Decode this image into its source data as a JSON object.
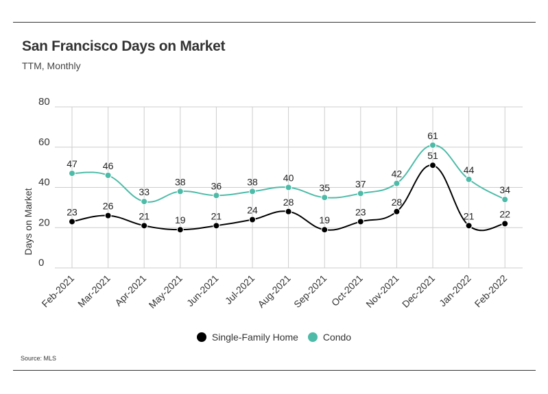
{
  "header": {
    "title": "San Francisco Days on Market",
    "subtitle": "TTM, Monthly"
  },
  "footer": {
    "source": "Source:  MLS"
  },
  "colors": {
    "single_family": "#000000",
    "condo": "#4dbba8",
    "grid": "#cccccc"
  },
  "chart_data": {
    "type": "line",
    "title": "San Francisco Days on Market",
    "subtitle": "TTM, Monthly",
    "xlabel": "",
    "ylabel": "Days on Market",
    "ylim": [
      0,
      80
    ],
    "yticks": [
      0,
      20,
      40,
      60,
      80
    ],
    "grid": true,
    "legend": "bottom",
    "categories": [
      "Feb-2021",
      "Mar-2021",
      "Apr-2021",
      "May-2021",
      "Jun-2021",
      "Jul-2021",
      "Aug-2021",
      "Sep-2021",
      "Oct-2021",
      "Nov-2021",
      "Dec-2021",
      "Jan-2022",
      "Feb-2022"
    ],
    "series": [
      {
        "name": "Single-Family Home",
        "color": "#000000",
        "values": [
          23,
          26,
          21,
          19,
          21,
          24,
          28,
          19,
          23,
          28,
          51,
          21,
          22
        ]
      },
      {
        "name": "Condo",
        "color": "#4dbba8",
        "values": [
          47,
          46,
          33,
          38,
          36,
          38,
          40,
          35,
          37,
          42,
          61,
          44,
          34
        ]
      }
    ]
  }
}
